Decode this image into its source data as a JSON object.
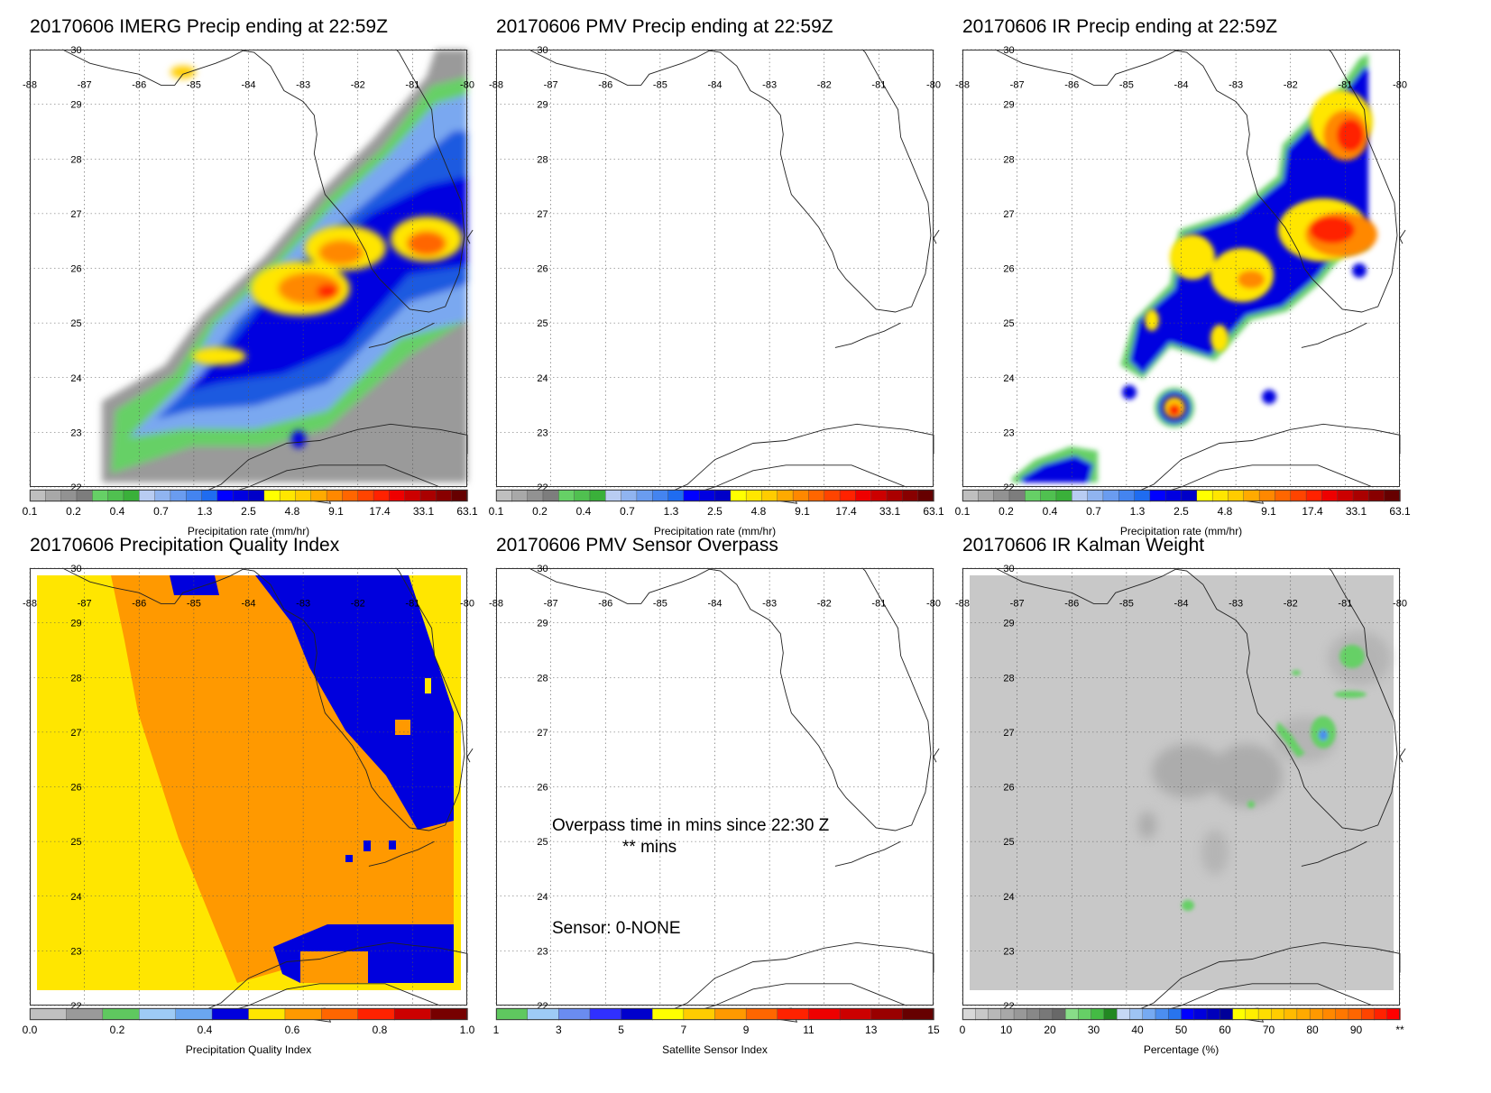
{
  "lon_ticks": [
    "-88",
    "-87",
    "-86",
    "-85",
    "-84",
    "-83",
    "-82",
    "-81",
    "-80"
  ],
  "lat_ticks": [
    "30",
    "29",
    "28",
    "27",
    "26",
    "25",
    "24",
    "23",
    "22"
  ],
  "colors": {
    "precip": [
      "#bfbfbf",
      "#a8a8a8",
      "#929292",
      "#7d7d7d",
      "#66d066",
      "#50c050",
      "#3ab03a",
      "#b8ccf2",
      "#90b4f0",
      "#6a9cf0",
      "#4484f0",
      "#1f6cf0",
      "#0000ff",
      "#0000e0",
      "#0000c8",
      "#ffff00",
      "#ffe600",
      "#ffcc00",
      "#ffaa00",
      "#ff8800",
      "#ff6600",
      "#ff4400",
      "#ff2200",
      "#ee0000",
      "#cc0000",
      "#aa0000",
      "#880000",
      "#660000"
    ],
    "pqi": [
      "#c0c0c0",
      "#9a9a9a",
      "#5fc85f",
      "#9ecbf5",
      "#6aa6f0",
      "#0000dd",
      "#ffe600",
      "#ff9900",
      "#ff6600",
      "#ff2200",
      "#cc0000",
      "#770000"
    ],
    "sensor": [
      "#5fc85f",
      "#9ecbf5",
      "#6a8cf0",
      "#3030ff",
      "#0000cc",
      "#ffff00",
      "#ffcc00",
      "#ff9900",
      "#ff6600",
      "#ff2200",
      "#ee0000",
      "#cc0000",
      "#990000",
      "#660000"
    ],
    "percent": [
      "#d8d8d8",
      "#c8c8c8",
      "#b8b8b8",
      "#a8a8a8",
      "#989898",
      "#888888",
      "#787878",
      "#686868",
      "#88dd88",
      "#66d066",
      "#44bb44",
      "#228822",
      "#c6d8f4",
      "#9ec4f4",
      "#76aaf2",
      "#4c8ef0",
      "#2874ee",
      "#0000ff",
      "#0000dd",
      "#0000bb",
      "#000099",
      "#ffff00",
      "#ffee00",
      "#ffdd00",
      "#ffcc00",
      "#ffbb00",
      "#ffaa00",
      "#ff9900",
      "#ff8800",
      "#ff7700",
      "#ff6600",
      "#ff4400",
      "#ff2200",
      "#ff0000"
    ]
  },
  "panels": [
    {
      "title": "20170606 IMERG Precip ending at 22:59Z",
      "colorbar_type": "precip",
      "colorbar_ticks": [
        "0.1",
        "0.2",
        "0.4",
        "0.7",
        "1.3",
        "2.5",
        "4.8",
        "9.1",
        "17.4",
        "33.1",
        "63.1"
      ],
      "colorbar_label": "Precipitation rate (mm/hr)"
    },
    {
      "title": "20170606 PMV Precip ending at 22:59Z",
      "colorbar_type": "precip",
      "colorbar_ticks": [
        "0.1",
        "0.2",
        "0.4",
        "0.7",
        "1.3",
        "2.5",
        "4.8",
        "9.1",
        "17.4",
        "33.1",
        "63.1"
      ],
      "colorbar_label": "Precipitation rate (mm/hr)"
    },
    {
      "title": "20170606 IR Precip ending at 22:59Z",
      "colorbar_type": "precip",
      "colorbar_ticks": [
        "0.1",
        "0.2",
        "0.4",
        "0.7",
        "1.3",
        "2.5",
        "4.8",
        "9.1",
        "17.4",
        "33.1",
        "63.1"
      ],
      "colorbar_label": "Precipitation rate (mm/hr)"
    },
    {
      "title": "20170606 Precipitation Quality Index",
      "colorbar_type": "pqi",
      "colorbar_ticks": [
        "0.0",
        "0.2",
        "0.4",
        "0.6",
        "0.8",
        "1.0"
      ],
      "colorbar_label": "Precipitation Quality Index"
    },
    {
      "title": "20170606 PMV Sensor Overpass",
      "colorbar_type": "sensor",
      "colorbar_ticks": [
        "1",
        "3",
        "5",
        "7",
        "9",
        "11",
        "13",
        "15"
      ],
      "colorbar_label": "Satellite Sensor Index",
      "overpass_text": "Overpass time in mins since 22:30 Z",
      "overpass_value": "** mins",
      "sensor_text": "Sensor:   0-NONE"
    },
    {
      "title": "20170606 IR Kalman Weight",
      "colorbar_type": "percent",
      "colorbar_ticks": [
        "0",
        "10",
        "20",
        "30",
        "40",
        "50",
        "60",
        "70",
        "80",
        "90",
        "**"
      ],
      "colorbar_label": "Percentage (%)"
    }
  ]
}
